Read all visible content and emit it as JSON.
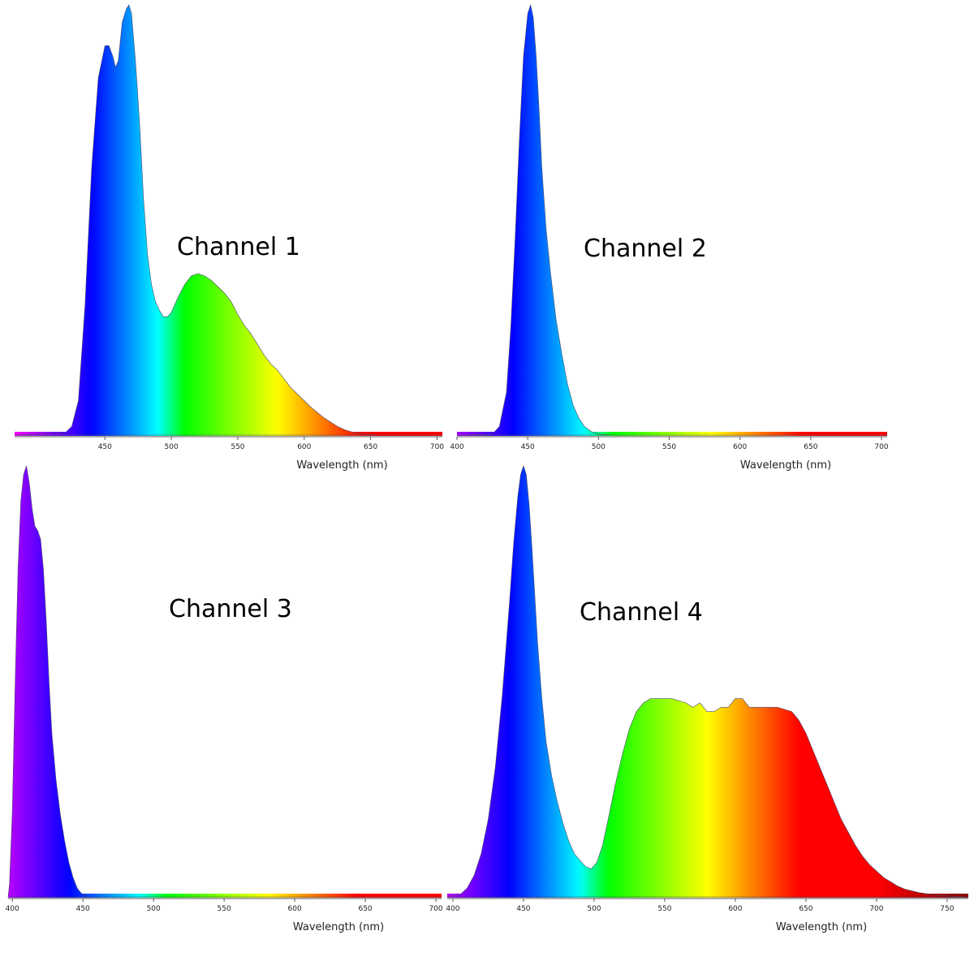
{
  "chart_data": [
    {
      "type": "area",
      "title": "Channel 1",
      "xlabel": "Wavelength (nm)",
      "ylabel": "",
      "xlim": [
        382,
        704
      ],
      "ylim": [
        0,
        1
      ],
      "x_ticks": [
        450,
        500,
        550,
        600,
        650,
        700
      ],
      "x_tick_labels": [
        "450",
        "500",
        "550",
        "600",
        "650",
        "700"
      ],
      "series": [
        {
          "x": [
            382,
            420,
            425,
            430,
            435,
            440,
            445,
            450,
            453,
            456,
            458,
            460,
            463,
            466,
            468,
            470,
            473,
            476,
            479,
            482,
            485,
            488,
            491,
            494,
            497,
            500,
            505,
            510,
            515,
            520,
            525,
            530,
            535,
            540,
            545,
            550,
            555,
            560,
            565,
            570,
            575,
            580,
            585,
            590,
            595,
            600,
            605,
            610,
            615,
            620,
            625,
            630,
            635,
            640,
            645,
            650,
            655,
            660,
            670,
            680,
            690,
            704
          ],
          "y": [
            0,
            0.005,
            0.02,
            0.08,
            0.3,
            0.62,
            0.83,
            0.905,
            0.905,
            0.88,
            0.855,
            0.87,
            0.96,
            0.99,
            1.0,
            0.98,
            0.87,
            0.73,
            0.55,
            0.42,
            0.35,
            0.31,
            0.29,
            0.275,
            0.275,
            0.285,
            0.32,
            0.35,
            0.37,
            0.375,
            0.37,
            0.36,
            0.345,
            0.33,
            0.31,
            0.28,
            0.255,
            0.235,
            0.21,
            0.185,
            0.165,
            0.15,
            0.13,
            0.11,
            0.095,
            0.08,
            0.065,
            0.052,
            0.04,
            0.03,
            0.02,
            0.013,
            0.008,
            0.004,
            0.002,
            0.001,
            0,
            0,
            0,
            0,
            0,
            0
          ]
        }
      ]
    },
    {
      "type": "area",
      "title": "Channel 2",
      "xlabel": "Wavelength (nm)",
      "ylabel": "",
      "xlim": [
        400,
        704
      ],
      "ylim": [
        0,
        1
      ],
      "x_ticks": [
        400,
        450,
        500,
        550,
        600,
        650,
        700
      ],
      "x_tick_labels": [
        "400",
        "450",
        "500",
        "550",
        "600",
        "650",
        "700"
      ],
      "series": [
        {
          "x": [
            400,
            425,
            430,
            435,
            438,
            441,
            444,
            447,
            450,
            452,
            454,
            456,
            458,
            460,
            463,
            466,
            470,
            474,
            478,
            482,
            486,
            490,
            495,
            500,
            510,
            704
          ],
          "y": [
            0,
            0.002,
            0.02,
            0.1,
            0.25,
            0.45,
            0.68,
            0.88,
            0.98,
            1.0,
            0.97,
            0.88,
            0.76,
            0.62,
            0.48,
            0.38,
            0.27,
            0.19,
            0.12,
            0.07,
            0.04,
            0.02,
            0.008,
            0.002,
            0,
            0
          ]
        }
      ]
    },
    {
      "type": "area",
      "title": "Channel 3",
      "xlabel": "Wavelength (nm)",
      "ylabel": "",
      "xlim": [
        397,
        704
      ],
      "ylim": [
        0,
        1
      ],
      "x_ticks": [
        400,
        450,
        500,
        550,
        600,
        650,
        700
      ],
      "x_tick_labels": [
        "400",
        "450",
        "500",
        "550",
        "600",
        "650",
        "700"
      ],
      "series": [
        {
          "x": [
            397,
            398,
            400,
            402,
            404,
            406,
            408,
            410,
            412,
            414,
            416,
            418,
            420,
            422,
            424,
            426,
            428,
            431,
            434,
            437,
            440,
            443,
            446,
            449,
            452,
            455,
            704
          ],
          "y": [
            0,
            0.03,
            0.2,
            0.5,
            0.76,
            0.92,
            0.98,
            1.0,
            0.96,
            0.9,
            0.86,
            0.85,
            0.83,
            0.76,
            0.64,
            0.5,
            0.38,
            0.27,
            0.19,
            0.13,
            0.08,
            0.045,
            0.02,
            0.008,
            0.002,
            0,
            0
          ]
        }
      ]
    },
    {
      "type": "area",
      "title": "Channel 4",
      "xlabel": "Wavelength (nm)",
      "ylabel": "",
      "xlim": [
        396,
        765
      ],
      "ylim": [
        0,
        1
      ],
      "x_ticks": [
        400,
        450,
        500,
        550,
        600,
        650,
        700,
        750
      ],
      "x_tick_labels": [
        "400",
        "450",
        "500",
        "550",
        "600",
        "650",
        "700",
        "750"
      ],
      "series": [
        {
          "x": [
            396,
            405,
            410,
            415,
            420,
            425,
            430,
            435,
            440,
            443,
            446,
            448,
            450,
            452,
            454,
            456,
            458,
            460,
            463,
            466,
            470,
            474,
            478,
            482,
            486,
            490,
            494,
            498,
            502,
            506,
            510,
            515,
            520,
            525,
            530,
            535,
            540,
            545,
            550,
            555,
            560,
            565,
            570,
            575,
            580,
            585,
            590,
            595,
            600,
            605,
            610,
            615,
            620,
            625,
            630,
            635,
            640,
            645,
            650,
            655,
            660,
            665,
            670,
            675,
            680,
            685,
            690,
            695,
            700,
            705,
            710,
            715,
            720,
            730,
            740,
            750,
            760,
            765
          ],
          "y": [
            0,
            0.005,
            0.02,
            0.05,
            0.1,
            0.18,
            0.3,
            0.47,
            0.68,
            0.82,
            0.93,
            0.98,
            1.0,
            0.98,
            0.91,
            0.81,
            0.7,
            0.59,
            0.46,
            0.36,
            0.28,
            0.22,
            0.17,
            0.13,
            0.1,
            0.085,
            0.07,
            0.065,
            0.08,
            0.12,
            0.18,
            0.26,
            0.33,
            0.39,
            0.43,
            0.45,
            0.46,
            0.46,
            0.46,
            0.46,
            0.455,
            0.45,
            0.44,
            0.45,
            0.43,
            0.43,
            0.44,
            0.44,
            0.46,
            0.46,
            0.44,
            0.44,
            0.44,
            0.44,
            0.44,
            0.435,
            0.43,
            0.41,
            0.38,
            0.34,
            0.3,
            0.26,
            0.22,
            0.18,
            0.15,
            0.12,
            0.095,
            0.075,
            0.06,
            0.045,
            0.035,
            0.025,
            0.018,
            0.01,
            0.005,
            0.002,
            0.001,
            0
          ]
        }
      ]
    }
  ]
}
